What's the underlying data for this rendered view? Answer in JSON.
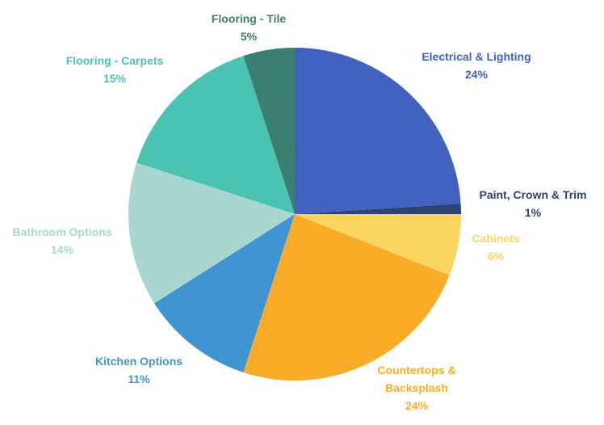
{
  "chart_data": {
    "type": "pie",
    "title": "",
    "start_angle_deg": 0,
    "direction": "clockwise",
    "slices": [
      {
        "label": "Electrical & Lighting",
        "value": 24,
        "value_label": "24%",
        "color": "#4262C0"
      },
      {
        "label": "Paint, Crown & Trim",
        "value": 1,
        "value_label": "1%",
        "color": "#2E4374"
      },
      {
        "label": "Cabinets",
        "value": 6,
        "value_label": "6%",
        "color": "#FAD55F"
      },
      {
        "label": "Countertops & Backsplash",
        "value": 24,
        "value_label": "24%",
        "color": "#FAAC28"
      },
      {
        "label": "Kitchen Options",
        "value": 11,
        "value_label": "11%",
        "color": "#3F94D1"
      },
      {
        "label": "Bathroom Options",
        "value": 14,
        "value_label": "14%",
        "color": "#A9D6CF"
      },
      {
        "label": "Flooring - Carpets",
        "value": 15,
        "value_label": "15%",
        "color": "#4BC3B2"
      },
      {
        "label": "Flooring - Tile",
        "value": 5,
        "value_label": "5%",
        "color": "#3A7F71"
      }
    ]
  }
}
